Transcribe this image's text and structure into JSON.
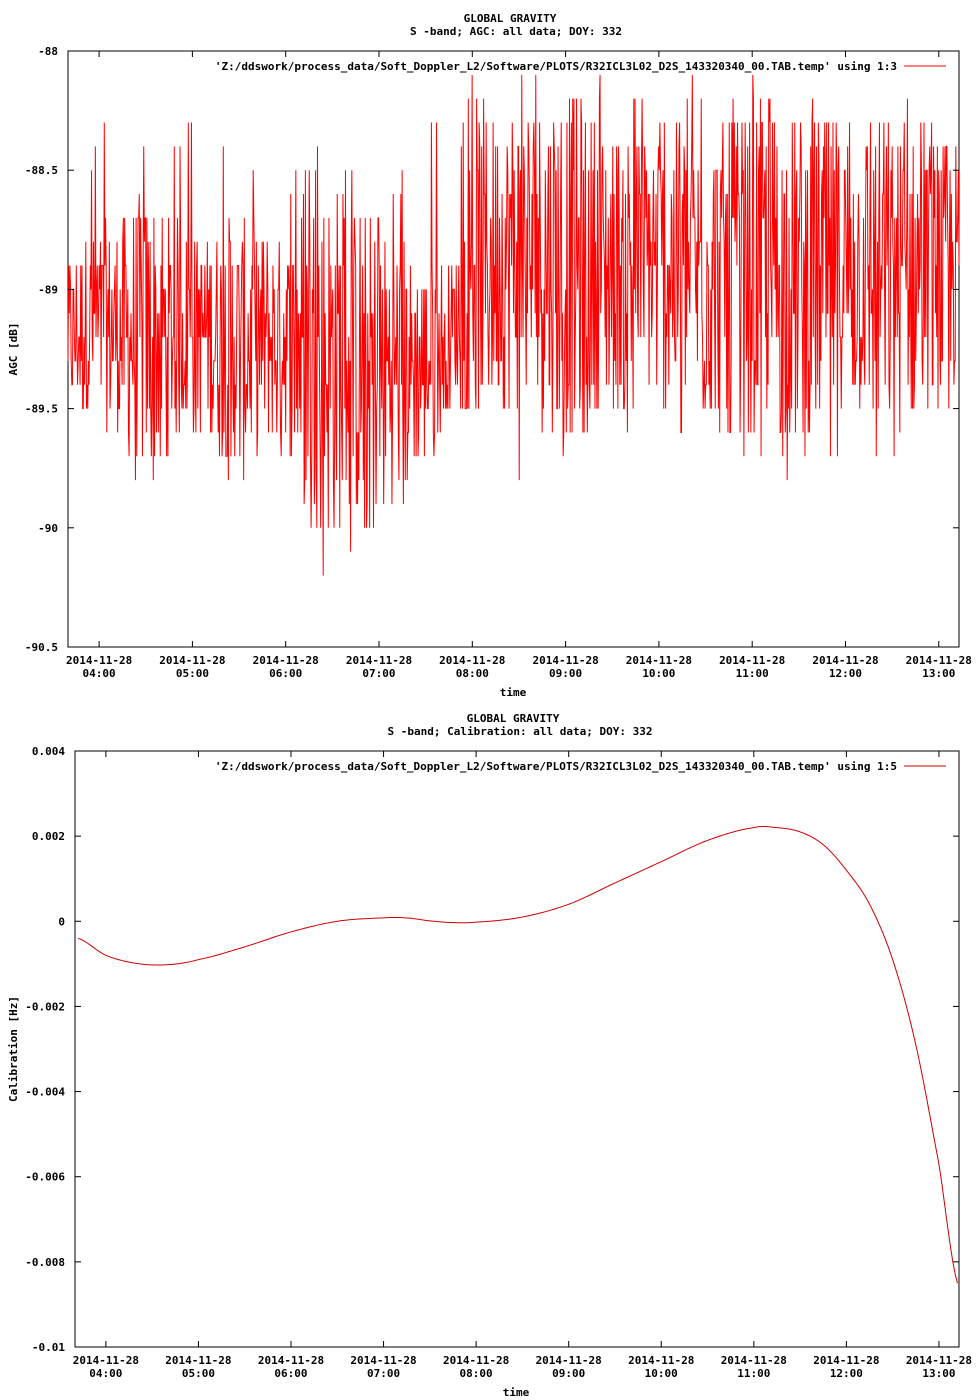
{
  "chart_data": [
    {
      "type": "line",
      "title": "GLOBAL GRAVITY",
      "subtitle": "S -band; AGC: all data; DOY: 332",
      "xlabel": "time",
      "ylabel": "AGC [dB]",
      "ylim": [
        -90.5,
        -88
      ],
      "xlim": [
        "2014-11-28 03:40",
        "2014-11-28 13:13"
      ],
      "grid": false,
      "legend_position": "top-right",
      "y_ticks": [
        {
          "value": -88,
          "label": "-88"
        },
        {
          "value": -88.5,
          "label": "-88.5"
        },
        {
          "value": -89,
          "label": "-89"
        },
        {
          "value": -89.5,
          "label": "-89.5"
        },
        {
          "value": -90,
          "label": "-90"
        },
        {
          "value": -90.5,
          "label": "-90.5"
        }
      ],
      "x_ticks": [
        {
          "value": "2014-11-28 04:00",
          "date": "2014-11-28",
          "time": "04:00"
        },
        {
          "value": "2014-11-28 05:00",
          "date": "2014-11-28",
          "time": "05:00"
        },
        {
          "value": "2014-11-28 06:00",
          "date": "2014-11-28",
          "time": "06:00"
        },
        {
          "value": "2014-11-28 07:00",
          "date": "2014-11-28",
          "time": "07:00"
        },
        {
          "value": "2014-11-28 08:00",
          "date": "2014-11-28",
          "time": "08:00"
        },
        {
          "value": "2014-11-28 09:00",
          "date": "2014-11-28",
          "time": "09:00"
        },
        {
          "value": "2014-11-28 10:00",
          "date": "2014-11-28",
          "time": "10:00"
        },
        {
          "value": "2014-11-28 11:00",
          "date": "2014-11-28",
          "time": "11:00"
        },
        {
          "value": "2014-11-28 12:00",
          "date": "2014-11-28",
          "time": "12:00"
        },
        {
          "value": "2014-11-28 13:00",
          "date": "2014-11-28",
          "time": "13:00"
        }
      ],
      "series": [
        {
          "name": "'Z:/ddswork/process_data/Soft_Doppler_L2/Software/PLOTS/R32ICL3L02_D2S_143320340_00.TAB.temp' using 1:3",
          "color": "#ff0000",
          "x": [
            "2014-11-28 03:40",
            "2014-11-28 04:00",
            "2014-11-28 04:30",
            "2014-11-28 05:00",
            "2014-11-28 05:30",
            "2014-11-28 06:00",
            "2014-11-28 06:30",
            "2014-11-28 07:00",
            "2014-11-28 07:30",
            "2014-11-28 07:50",
            "2014-11-28 08:00",
            "2014-11-28 08:30",
            "2014-11-28 09:00",
            "2014-11-28 09:30",
            "2014-11-28 10:00",
            "2014-11-28 10:30",
            "2014-11-28 11:00",
            "2014-11-28 11:30",
            "2014-11-28 12:00",
            "2014-11-28 12:30",
            "2014-11-28 13:00",
            "2014-11-28 13:13"
          ],
          "values": [
            -89.2,
            -89.15,
            -89.2,
            -89.15,
            -89.25,
            -89.2,
            -89.3,
            -89.35,
            -89.3,
            -89.15,
            -88.9,
            -88.85,
            -88.9,
            -88.9,
            -88.9,
            -88.95,
            -88.9,
            -88.95,
            -88.9,
            -88.95,
            -88.95,
            -88.9
          ],
          "min_values": [
            -89.6,
            -89.6,
            -89.9,
            -89.6,
            -89.9,
            -89.7,
            -90.3,
            -90.1,
            -89.8,
            -89.5,
            -89.7,
            -89.8,
            -89.8,
            -89.6,
            -89.6,
            -89.7,
            -89.7,
            -89.8,
            -89.8,
            -89.7,
            -89.6,
            -89.6
          ],
          "max_values": [
            -88.6,
            -88.3,
            -88.3,
            -88.3,
            -88.4,
            -88.5,
            -88.4,
            -88.6,
            -88.2,
            -88.3,
            -88.1,
            -88.1,
            -88.0,
            -88.1,
            -88.2,
            -88.1,
            -88.1,
            -88.1,
            -88.2,
            -88.1,
            -88.3,
            -88.3
          ]
        }
      ]
    },
    {
      "type": "line",
      "title": "GLOBAL GRAVITY",
      "subtitle": "S -band; Calibration: all data; DOY: 332",
      "xlabel": "time",
      "ylabel": "Calibration [Hz]",
      "ylim": [
        -0.01,
        0.004
      ],
      "xlim": [
        "2014-11-28 03:40",
        "2014-11-28 13:13"
      ],
      "grid": false,
      "legend_position": "top-right",
      "y_ticks": [
        {
          "value": 0.004,
          "label": "0.004"
        },
        {
          "value": 0.002,
          "label": "0.002"
        },
        {
          "value": 0,
          "label": "0"
        },
        {
          "value": -0.002,
          "label": "-0.002"
        },
        {
          "value": -0.004,
          "label": "-0.004"
        },
        {
          "value": -0.006,
          "label": "-0.006"
        },
        {
          "value": -0.008,
          "label": "-0.008"
        },
        {
          "value": -0.01,
          "label": "-0.01"
        }
      ],
      "x_ticks": [
        {
          "value": "2014-11-28 04:00",
          "date": "2014-11-28",
          "time": "04:00"
        },
        {
          "value": "2014-11-28 05:00",
          "date": "2014-11-28",
          "time": "05:00"
        },
        {
          "value": "2014-11-28 06:00",
          "date": "2014-11-28",
          "time": "06:00"
        },
        {
          "value": "2014-11-28 07:00",
          "date": "2014-11-28",
          "time": "07:00"
        },
        {
          "value": "2014-11-28 08:00",
          "date": "2014-11-28",
          "time": "08:00"
        },
        {
          "value": "2014-11-28 09:00",
          "date": "2014-11-28",
          "time": "09:00"
        },
        {
          "value": "2014-11-28 10:00",
          "date": "2014-11-28",
          "time": "10:00"
        },
        {
          "value": "2014-11-28 11:00",
          "date": "2014-11-28",
          "time": "11:00"
        },
        {
          "value": "2014-11-28 12:00",
          "date": "2014-11-28",
          "time": "12:00"
        },
        {
          "value": "2014-11-28 13:00",
          "date": "2014-11-28",
          "time": "13:00"
        }
      ],
      "series": [
        {
          "name": "'Z:/ddswork/process_data/Soft_Doppler_L2/Software/PLOTS/R32ICL3L02_D2S_143320340_00.TAB.temp' using 1:5",
          "color": "#cc0000",
          "x": [
            "2014-11-28 03:42",
            "2014-11-28 04:00",
            "2014-11-28 04:20",
            "2014-11-28 04:40",
            "2014-11-28 05:00",
            "2014-11-28 05:30",
            "2014-11-28 06:00",
            "2014-11-28 06:30",
            "2014-11-28 07:00",
            "2014-11-28 07:15",
            "2014-11-28 07:30",
            "2014-11-28 07:45",
            "2014-11-28 08:00",
            "2014-11-28 08:30",
            "2014-11-28 09:00",
            "2014-11-28 09:30",
            "2014-11-28 10:00",
            "2014-11-28 10:30",
            "2014-11-28 11:00",
            "2014-11-28 11:15",
            "2014-11-28 11:30",
            "2014-11-28 11:45",
            "2014-11-28 12:00",
            "2014-11-28 12:15",
            "2014-11-28 12:30",
            "2014-11-28 12:45",
            "2014-11-28 13:00",
            "2014-11-28 13:12"
          ],
          "values": [
            -0.0004,
            -0.0008,
            -0.00099,
            -0.00102,
            -0.0009,
            -0.0006,
            -0.00025,
            0.0,
            8e-05,
            8e-05,
            1e-05,
            -3e-05,
            -2e-05,
            0.0001,
            0.0004,
            0.0009,
            0.0014,
            0.0019,
            0.0022,
            0.0022,
            0.0021,
            0.0018,
            0.0012,
            0.0004,
            -0.0009,
            -0.0029,
            -0.0057,
            -0.0085
          ]
        }
      ]
    }
  ]
}
